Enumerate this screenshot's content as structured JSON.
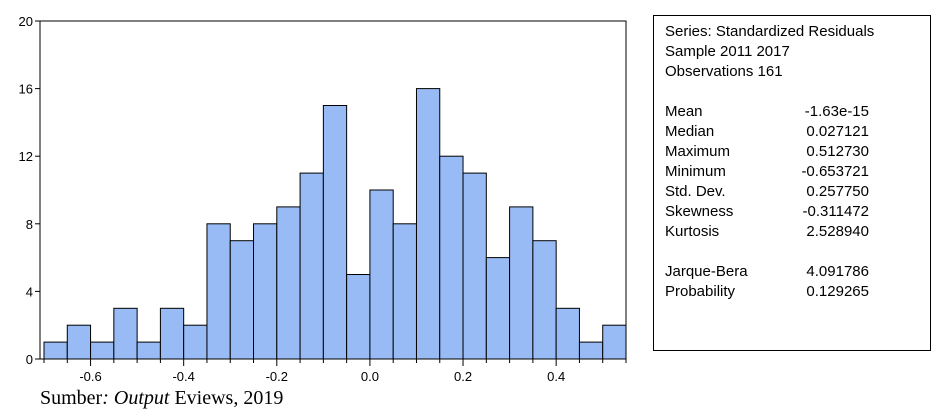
{
  "chart_data": {
    "type": "bar",
    "title": "",
    "xlabel": "",
    "ylabel": "",
    "bin_width": 0.05,
    "bins_start": [
      -0.7,
      -0.65,
      -0.6,
      -0.55,
      -0.5,
      -0.45,
      -0.4,
      -0.35,
      -0.3,
      -0.25,
      -0.2,
      -0.15,
      -0.1,
      -0.05,
      0.0,
      0.05,
      0.1,
      0.15,
      0.2,
      0.25,
      0.3,
      0.35,
      0.4,
      0.45,
      0.5
    ],
    "values": [
      1,
      2,
      1,
      3,
      1,
      3,
      2,
      8,
      7,
      8,
      9,
      11,
      15,
      5,
      10,
      8,
      16,
      12,
      11,
      6,
      9,
      7,
      3,
      1,
      2
    ],
    "xlim": [
      -0.7,
      0.55
    ],
    "ylim": [
      0,
      20
    ],
    "xticks": [
      -0.6,
      -0.4,
      -0.2,
      0.0,
      0.2,
      0.4
    ],
    "xtick_labels": [
      "-0.6",
      "-0.4",
      "-0.2",
      "0.0",
      "0.2",
      "0.4"
    ],
    "yticks": [
      0,
      4,
      8,
      12,
      16,
      20
    ],
    "ytick_labels": [
      "0",
      "4",
      "8",
      "12",
      "16",
      "20"
    ],
    "bar_color": "#99bbf5",
    "grid": false
  },
  "stats": {
    "series": "Series: Standardized Residuals",
    "sample": "Sample 2011 2017",
    "observations": "Observations 161",
    "rows": [
      {
        "label": "Mean",
        "value": "-1.63e-15"
      },
      {
        "label": "Median",
        "value": "0.027121"
      },
      {
        "label": "Maximum",
        "value": "0.512730"
      },
      {
        "label": "Minimum",
        "value": "-0.653721"
      },
      {
        "label": "Std. Dev.",
        "value": "0.257750"
      },
      {
        "label": "Skewness",
        "value": "-0.311472"
      },
      {
        "label": "Kurtosis",
        "value": "2.528940"
      }
    ],
    "test_rows": [
      {
        "label": "Jarque-Bera",
        "value": "4.091786"
      },
      {
        "label": "Probability",
        "value": "0.129265"
      }
    ]
  },
  "caption": {
    "prefix": "Sumber",
    "colon": ": ",
    "italic": "Output",
    "suffix": " Eviews, 2019"
  }
}
